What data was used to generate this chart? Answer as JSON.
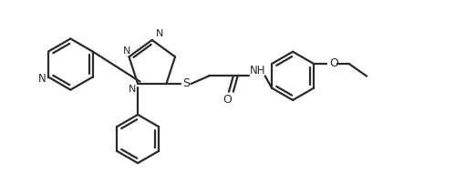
{
  "background_color": "#ffffff",
  "line_color": "#2a2a2a",
  "line_width": 1.6,
  "figsize": [
    5.22,
    2.03
  ],
  "dpi": 100,
  "xlim": [
    0,
    10.5
  ],
  "ylim": [
    0.0,
    4.2
  ]
}
